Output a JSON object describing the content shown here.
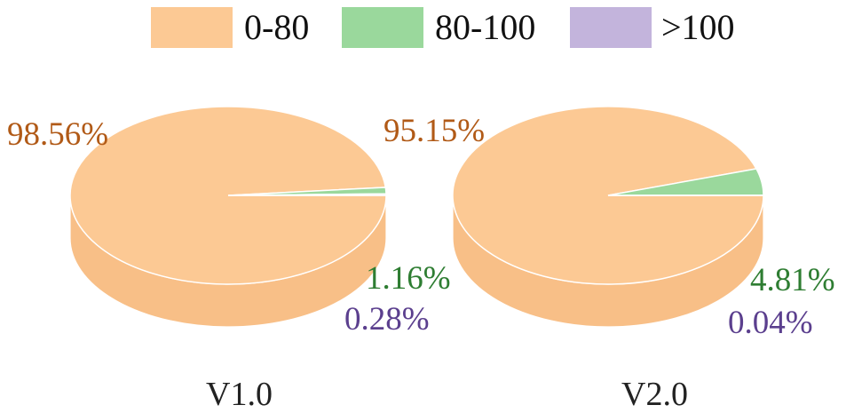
{
  "chart_data": [
    {
      "type": "pie",
      "title": "V1.0",
      "categories": [
        "0-80",
        "80-100",
        ">100"
      ],
      "values": [
        98.56,
        1.16,
        0.28
      ],
      "labels": [
        "98.56%",
        "1.16%",
        "0.28%"
      ]
    },
    {
      "type": "pie",
      "title": "V2.0",
      "categories": [
        "0-80",
        "80-100",
        ">100"
      ],
      "values": [
        95.15,
        4.81,
        0.04
      ],
      "labels": [
        "95.15%",
        "4.81%",
        "0.04%"
      ]
    }
  ],
  "legend": {
    "placement": "top",
    "items": [
      {
        "label": "0-80",
        "color": "#FCC994"
      },
      {
        "label": "80-100",
        "color": "#9AD89C"
      },
      {
        "label": ">100",
        "color": "#C3B4DC"
      }
    ]
  },
  "label_colors": [
    "#B15A17",
    "#2E7D32",
    "#5B3F8E"
  ],
  "side_colors": [
    "#F8BF87",
    "#83C986",
    "#AE9CCC"
  ]
}
